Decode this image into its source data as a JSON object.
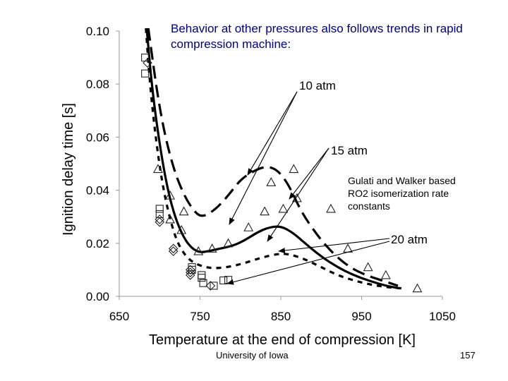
{
  "headline": "Behavior at other pressures also follows trends in rapid compression machine:",
  "footer": {
    "source": "University of Iowa",
    "page_number": "157"
  },
  "chart_data": {
    "type": "scatter",
    "title": "",
    "xlabel": "Temperature at the end of compression [K]",
    "ylabel": "Ignition delay time [s]",
    "xlim": [
      650,
      1050
    ],
    "ylim": [
      0,
      0.1
    ],
    "x_ticks": [
      "650",
      "750",
      "850",
      "950",
      "1050"
    ],
    "x_tick_values": [
      650,
      750,
      850,
      950,
      1050
    ],
    "y_ticks": [
      "0.00",
      "0.02",
      "0.04",
      "0.06",
      "0.08",
      "0.10"
    ],
    "y_tick_values": [
      0,
      0.02,
      0.04,
      0.06,
      0.08,
      0.1
    ],
    "grid": false,
    "annotations": {
      "p10": "10 atm",
      "p15": "15 atm",
      "p20": "20 atm",
      "model": "Gulati and Walker based RO2 isomerization rate constants"
    },
    "series": [
      {
        "marker": "square",
        "points": [
          [
            682,
            0.09
          ],
          [
            682,
            0.084
          ],
          [
            700,
            0.033
          ],
          [
            700,
            0.031
          ],
          [
            740,
            0.011
          ],
          [
            740,
            0.01
          ],
          [
            752,
            0.008
          ],
          [
            752,
            0.007
          ],
          [
            754,
            0.005
          ],
          [
            767,
            0.004
          ],
          [
            779,
            0.006
          ],
          [
            785,
            0.0062
          ]
        ]
      },
      {
        "marker": "diamond",
        "points": [
          [
            685,
            0.088
          ],
          [
            700,
            0.029
          ],
          [
            700,
            0.028
          ],
          [
            717,
            0.018
          ],
          [
            717,
            0.017
          ],
          [
            738,
            0.01
          ],
          [
            738,
            0.009
          ],
          [
            738,
            0.008
          ],
          [
            763,
            0.004
          ]
        ]
      },
      {
        "marker": "triangle",
        "points": [
          [
            698,
            0.048
          ],
          [
            713,
            0.029
          ],
          [
            713,
            0.038
          ],
          [
            727,
            0.025
          ],
          [
            730,
            0.032
          ],
          [
            748,
            0.017
          ],
          [
            765,
            0.018
          ],
          [
            785,
            0.02
          ],
          [
            810,
            0.026
          ],
          [
            830,
            0.032
          ],
          [
            838,
            0.043
          ],
          [
            853,
            0.033
          ],
          [
            866,
            0.048
          ],
          [
            870,
            0.037
          ],
          [
            912,
            0.033
          ],
          [
            933,
            0.018
          ],
          [
            958,
            0.011
          ],
          [
            980,
            0.008
          ],
          [
            1019,
            0.003
          ]
        ]
      }
    ],
    "curves": [
      {
        "style": "long-dash",
        "points": [
          [
            686,
            0.102
          ],
          [
            700,
            0.07
          ],
          [
            715,
            0.05
          ],
          [
            730,
            0.038
          ],
          [
            745,
            0.031
          ],
          [
            755,
            0.03
          ],
          [
            770,
            0.033
          ],
          [
            785,
            0.038
          ],
          [
            800,
            0.044
          ],
          [
            815,
            0.047
          ],
          [
            830,
            0.049
          ],
          [
            845,
            0.048
          ],
          [
            860,
            0.042
          ],
          [
            875,
            0.032
          ],
          [
            895,
            0.023
          ],
          [
            915,
            0.016
          ],
          [
            935,
            0.011
          ],
          [
            955,
            0.008
          ],
          [
            975,
            0.006
          ],
          [
            995,
            0.004
          ]
        ]
      },
      {
        "style": "solid",
        "points": [
          [
            684,
            0.102
          ],
          [
            690,
            0.08
          ],
          [
            700,
            0.057
          ],
          [
            710,
            0.04
          ],
          [
            720,
            0.029
          ],
          [
            730,
            0.022
          ],
          [
            740,
            0.018
          ],
          [
            750,
            0.0165
          ],
          [
            760,
            0.017
          ],
          [
            775,
            0.018
          ],
          [
            790,
            0.019
          ],
          [
            805,
            0.021
          ],
          [
            820,
            0.024
          ],
          [
            835,
            0.026
          ],
          [
            850,
            0.0265
          ],
          [
            865,
            0.024
          ],
          [
            880,
            0.02
          ],
          [
            900,
            0.015
          ],
          [
            920,
            0.011
          ],
          [
            940,
            0.008
          ],
          [
            960,
            0.0058
          ],
          [
            980,
            0.004
          ],
          [
            997,
            0.003
          ]
        ]
      },
      {
        "style": "short-dash",
        "points": [
          [
            683,
            0.102
          ],
          [
            688,
            0.08
          ],
          [
            695,
            0.06
          ],
          [
            703,
            0.043
          ],
          [
            712,
            0.03
          ],
          [
            722,
            0.02
          ],
          [
            735,
            0.014
          ],
          [
            750,
            0.0115
          ],
          [
            765,
            0.0105
          ],
          [
            785,
            0.011
          ],
          [
            805,
            0.0125
          ],
          [
            825,
            0.0145
          ],
          [
            845,
            0.016
          ],
          [
            860,
            0.016
          ],
          [
            880,
            0.014
          ],
          [
            900,
            0.011
          ],
          [
            920,
            0.008
          ],
          [
            940,
            0.006
          ],
          [
            960,
            0.0045
          ],
          [
            980,
            0.0035
          ],
          [
            1000,
            0.003
          ]
        ]
      }
    ]
  }
}
